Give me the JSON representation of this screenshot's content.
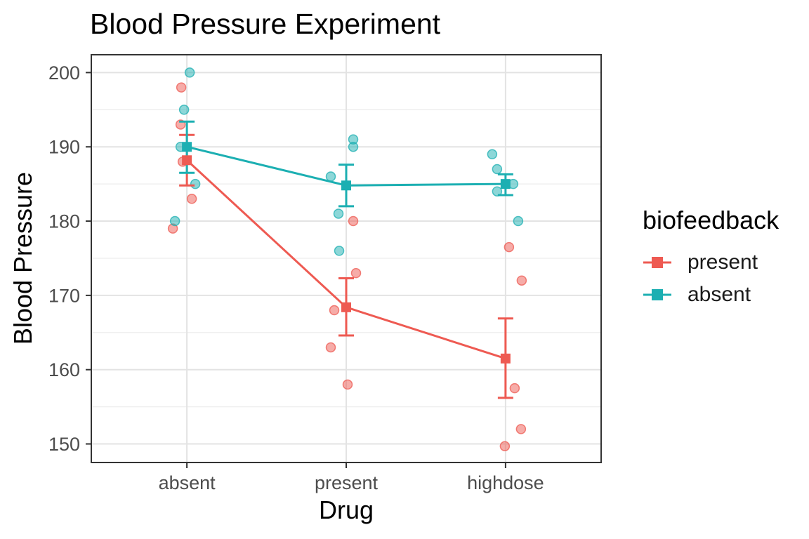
{
  "chart_data": {
    "type": "scatter",
    "title": "Blood Pressure Experiment",
    "xlabel": "Drug",
    "ylabel": "Blood Pressure",
    "categories": [
      "absent",
      "present",
      "highdose"
    ],
    "yticks": [
      150,
      160,
      170,
      180,
      190,
      200
    ],
    "ylim": [
      147.5,
      202.4
    ],
    "grid": "major-and-minor-horizontal, major-vertical-at-categories",
    "legend_position": "right",
    "legend": {
      "title": "biofeedback",
      "entries": [
        {
          "label": "present",
          "color": "#ee5a52"
        },
        {
          "label": "absent",
          "color": "#1cafb2"
        }
      ]
    },
    "series": [
      {
        "name": "present",
        "color": "#ee5a52",
        "means": [
          188.2,
          168.4,
          161.5
        ],
        "se_low": [
          184.8,
          164.6,
          156.2
        ],
        "se_high": [
          191.6,
          172.3,
          166.9
        ],
        "points": [
          [
            [
              -8,
              198
            ],
            [
              -9,
              193
            ],
            [
              -6,
              188
            ],
            [
              7,
              183
            ],
            [
              -20,
              179
            ]
          ],
          [
            [
              10,
              180
            ],
            [
              14,
              173
            ],
            [
              -17,
              168
            ],
            [
              -22,
              163
            ],
            [
              2,
              158
            ]
          ],
          [
            [
              5,
              176.5
            ],
            [
              23,
              172
            ],
            [
              13,
              157.5
            ],
            [
              22,
              152
            ],
            [
              -1,
              149.7
            ]
          ]
        ]
      },
      {
        "name": "absent",
        "color": "#1cafb2",
        "means": [
          190.0,
          184.8,
          185.0
        ],
        "se_low": [
          186.5,
          182.0,
          183.5
        ],
        "se_high": [
          193.4,
          187.6,
          186.3
        ],
        "points": [
          [
            [
              4,
              200
            ],
            [
              -4,
              195
            ],
            [
              -9,
              190
            ],
            [
              12,
              185
            ],
            [
              -17,
              180
            ]
          ],
          [
            [
              10,
              191
            ],
            [
              10,
              190
            ],
            [
              -22,
              186
            ],
            [
              -11,
              181
            ],
            [
              -10,
              176
            ]
          ],
          [
            [
              -19,
              189
            ],
            [
              -12,
              187
            ],
            [
              11,
              185
            ],
            [
              -12,
              184
            ],
            [
              18,
              180
            ]
          ]
        ]
      }
    ],
    "style": {
      "panel_border": "#333333",
      "grid_major": "#e3e3e3",
      "grid_minor": "#eeeeee",
      "tick_color": "#333333",
      "tick_text_color": "#4d4d4d"
    }
  }
}
